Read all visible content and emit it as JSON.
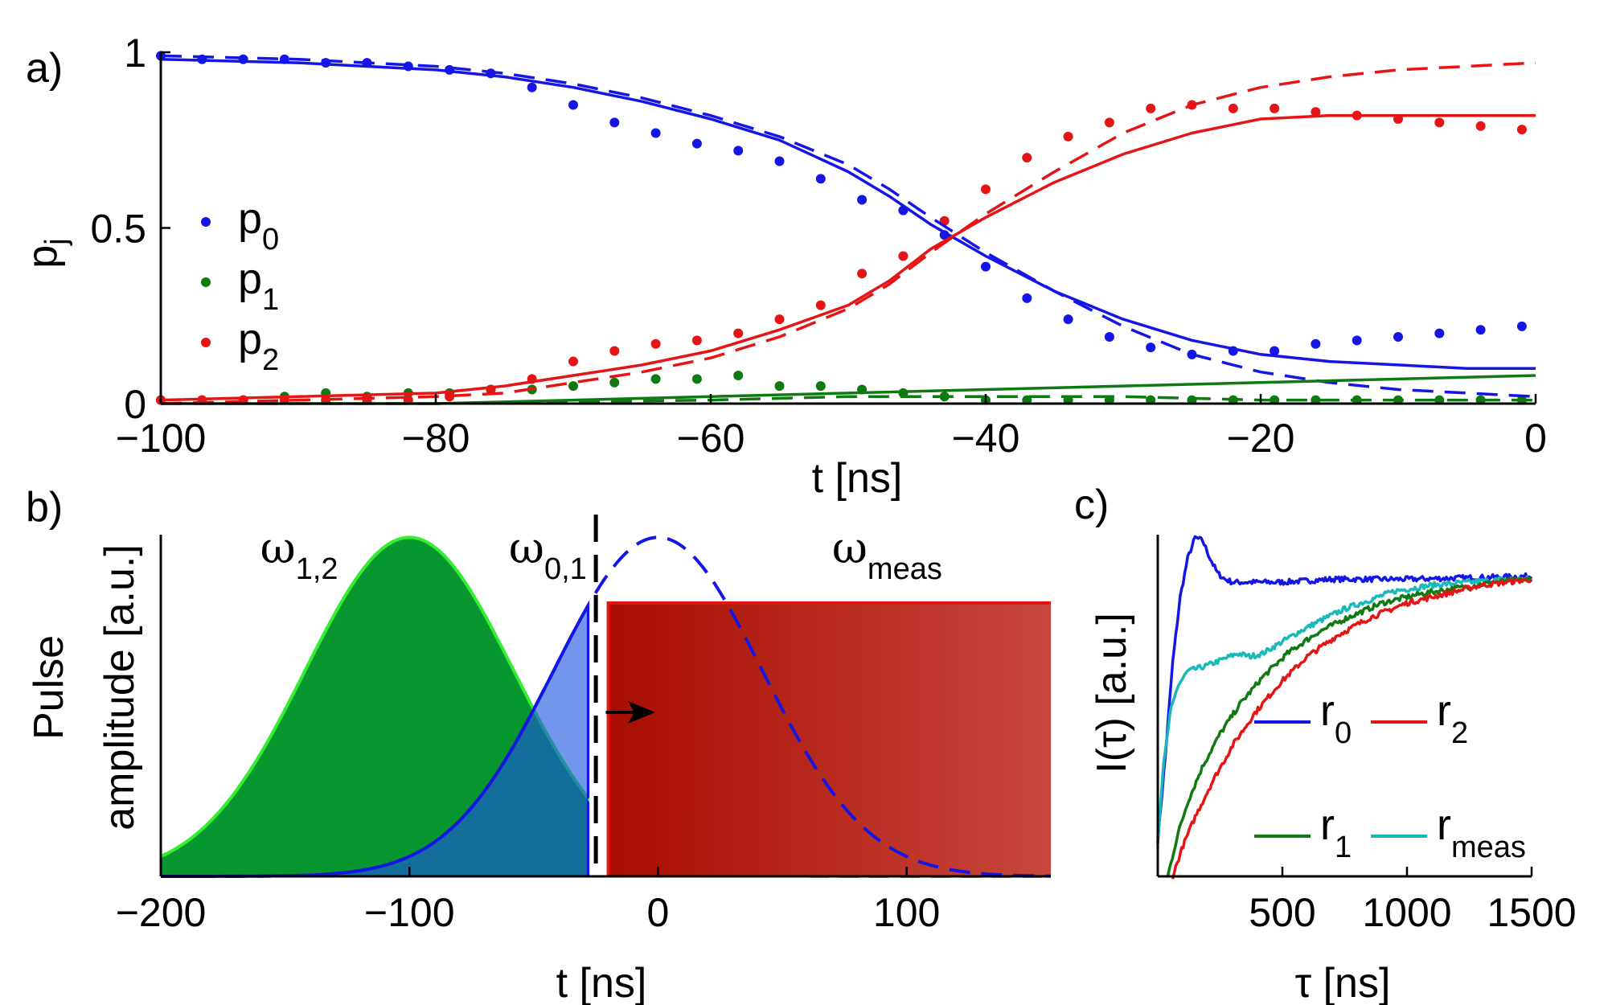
{
  "chart_data": [
    {
      "panel": "a)",
      "type": "line",
      "xlabel": "t [ns]",
      "ylabel": "p",
      "ylabel_sub": "j",
      "xlim": [
        -100,
        0
      ],
      "ylim": [
        0,
        1
      ],
      "xticks": [
        -100,
        -80,
        -60,
        -40,
        -20,
        0
      ],
      "xtick_labels": [
        "−100",
        "−80",
        "−60",
        "−40",
        "−20",
        "0"
      ],
      "yticks": [
        0,
        0.5,
        1
      ],
      "ytick_labels": [
        "0",
        "0.5",
        "1"
      ],
      "legend": [
        {
          "label": "p",
          "sub": "0",
          "color": "#1515e6"
        },
        {
          "label": "p",
          "sub": "1",
          "color": "#0f7a12"
        },
        {
          "label": "p",
          "sub": "2",
          "color": "#e61515"
        }
      ],
      "legend_position": "center-left",
      "series": [
        {
          "name": "p0 data",
          "style": "dots",
          "color": "#1515e6",
          "x": [
            -100,
            -97,
            -94,
            -91,
            -88,
            -85,
            -82,
            -79,
            -76,
            -73,
            -70,
            -67,
            -64,
            -61,
            -58,
            -55,
            -52,
            -49,
            -46,
            -43,
            -40,
            -37,
            -34,
            -31,
            -28,
            -25,
            -22,
            -19,
            -16,
            -13,
            -10,
            -7,
            -4,
            -1
          ],
          "y": [
            0.99,
            0.98,
            0.98,
            0.98,
            0.97,
            0.97,
            0.96,
            0.95,
            0.94,
            0.9,
            0.85,
            0.8,
            0.77,
            0.74,
            0.72,
            0.69,
            0.64,
            0.58,
            0.55,
            0.48,
            0.39,
            0.3,
            0.24,
            0.19,
            0.16,
            0.14,
            0.15,
            0.15,
            0.17,
            0.18,
            0.19,
            0.2,
            0.21,
            0.22
          ]
        },
        {
          "name": "p1 data",
          "style": "dots",
          "color": "#0f7a12",
          "x": [
            -100,
            -97,
            -94,
            -91,
            -88,
            -85,
            -82,
            -79,
            -76,
            -73,
            -70,
            -67,
            -64,
            -61,
            -58,
            -55,
            -52,
            -49,
            -46,
            -43,
            -40,
            -37,
            -34,
            -31,
            -28,
            -25,
            -22,
            -19,
            -16,
            -13,
            -10,
            -7,
            -4,
            -1
          ],
          "y": [
            0.01,
            0.01,
            0.01,
            0.02,
            0.03,
            0.02,
            0.03,
            0.03,
            0.04,
            0.04,
            0.05,
            0.06,
            0.07,
            0.07,
            0.08,
            0.05,
            0.05,
            0.04,
            0.03,
            0.02,
            0.01,
            0.01,
            0.01,
            0.01,
            0.01,
            0.01,
            0.01,
            0.01,
            0.01,
            0.01,
            0.01,
            0.01,
            0.01,
            0.01
          ]
        },
        {
          "name": "p2 data",
          "style": "dots",
          "color": "#e61515",
          "x": [
            -100,
            -97,
            -94,
            -91,
            -88,
            -85,
            -82,
            -79,
            -76,
            -73,
            -70,
            -67,
            -64,
            -61,
            -58,
            -55,
            -52,
            -49,
            -46,
            -43,
            -40,
            -37,
            -34,
            -31,
            -28,
            -25,
            -22,
            -19,
            -16,
            -13,
            -10,
            -7,
            -4,
            -1
          ],
          "y": [
            0.01,
            0.01,
            0.01,
            0.01,
            0.01,
            0.01,
            0.01,
            0.02,
            0.04,
            0.07,
            0.12,
            0.15,
            0.17,
            0.18,
            0.2,
            0.24,
            0.28,
            0.37,
            0.42,
            0.52,
            0.61,
            0.7,
            0.76,
            0.8,
            0.84,
            0.85,
            0.84,
            0.84,
            0.83,
            0.82,
            0.81,
            0.8,
            0.79,
            0.78
          ]
        },
        {
          "name": "p0 model (solid)",
          "style": "solid",
          "color": "#1515e6",
          "x": [
            -100,
            -90,
            -80,
            -75,
            -70,
            -65,
            -60,
            -55,
            -50,
            -47,
            -44,
            -40,
            -35,
            -30,
            -25,
            -20,
            -15,
            -10,
            -5,
            0
          ],
          "y": [
            0.98,
            0.97,
            0.95,
            0.93,
            0.9,
            0.86,
            0.81,
            0.75,
            0.66,
            0.59,
            0.51,
            0.42,
            0.32,
            0.24,
            0.18,
            0.14,
            0.12,
            0.11,
            0.1,
            0.1
          ]
        },
        {
          "name": "p0 model (dashed)",
          "style": "dashed",
          "color": "#1515e6",
          "x": [
            -100,
            -90,
            -80,
            -75,
            -70,
            -65,
            -60,
            -55,
            -50,
            -47,
            -44,
            -40,
            -35,
            -30,
            -25,
            -20,
            -15,
            -10,
            -5,
            0
          ],
          "y": [
            0.99,
            0.98,
            0.96,
            0.94,
            0.91,
            0.87,
            0.82,
            0.76,
            0.68,
            0.61,
            0.53,
            0.43,
            0.32,
            0.22,
            0.14,
            0.09,
            0.06,
            0.04,
            0.03,
            0.02
          ]
        },
        {
          "name": "p1 model (solid)",
          "style": "solid",
          "color": "#0f7a12",
          "x": [
            -100,
            -80,
            -60,
            -50,
            -40,
            -30,
            -20,
            -10,
            0
          ],
          "y": [
            0.0,
            0.0,
            0.02,
            0.03,
            0.04,
            0.05,
            0.06,
            0.07,
            0.08
          ]
        },
        {
          "name": "p1 model (dashed)",
          "style": "dashed",
          "color": "#0f7a12",
          "x": [
            -100,
            -80,
            -60,
            -50,
            -40,
            -30,
            -20,
            -10,
            0
          ],
          "y": [
            0.0,
            0.0,
            0.01,
            0.02,
            0.02,
            0.02,
            0.01,
            0.01,
            0.01
          ]
        },
        {
          "name": "p2 model (solid)",
          "style": "solid",
          "color": "#e61515",
          "x": [
            -100,
            -90,
            -80,
            -75,
            -70,
            -65,
            -60,
            -55,
            -50,
            -47,
            -44,
            -40,
            -35,
            -30,
            -25,
            -20,
            -15,
            -10,
            -5,
            0
          ],
          "y": [
            0.01,
            0.02,
            0.03,
            0.05,
            0.08,
            0.11,
            0.15,
            0.21,
            0.28,
            0.35,
            0.44,
            0.53,
            0.63,
            0.71,
            0.77,
            0.81,
            0.82,
            0.82,
            0.82,
            0.82
          ]
        },
        {
          "name": "p2 model (dashed)",
          "style": "dashed",
          "color": "#e61515",
          "x": [
            -100,
            -90,
            -80,
            -75,
            -70,
            -65,
            -60,
            -55,
            -50,
            -47,
            -44,
            -40,
            -35,
            -30,
            -25,
            -20,
            -15,
            -10,
            -5,
            0
          ],
          "y": [
            0.0,
            0.01,
            0.02,
            0.03,
            0.06,
            0.09,
            0.13,
            0.19,
            0.27,
            0.34,
            0.43,
            0.54,
            0.66,
            0.77,
            0.85,
            0.9,
            0.93,
            0.95,
            0.96,
            0.97
          ]
        }
      ]
    },
    {
      "panel": "b)",
      "type": "area",
      "xlabel": "t [ns]",
      "ylabel": "Pulse amplitude [a.u.]",
      "ylabel_lines": [
        "Pulse",
        "amplitude [a.u.]"
      ],
      "xlim": [
        -200,
        158
      ],
      "ylim": [
        0,
        1.25
      ],
      "xticks": [
        -200,
        -100,
        0,
        100
      ],
      "xtick_labels": [
        "−200",
        "−100",
        "0",
        "100"
      ],
      "annotations": [
        {
          "text": "ω",
          "sub": "1,2",
          "x": -160
        },
        {
          "text": "ω",
          "sub": "0,1",
          "x": -60
        },
        {
          "text": "ω",
          "sub": "meas",
          "x": 70
        }
      ],
      "pulse_12": {
        "center": -100,
        "sigma": 42,
        "amplitude": 1.24,
        "cut": -28,
        "color": "#08962e",
        "edge": "#33ee33"
      },
      "pulse_01": {
        "center": 0,
        "sigma": 42,
        "amplitude": 1.24,
        "cut": -28,
        "color": "#1a56e0",
        "edge": "#1515e6"
      },
      "meas_pulse": {
        "start": -20,
        "end": 158,
        "level": 1.0,
        "color_start": "#a80d00",
        "color_end": "#c8473d",
        "edge": "#e61515"
      },
      "dashed_marker_x": -25,
      "arrow": {
        "from": -21,
        "to": -5,
        "level": 0.6
      }
    },
    {
      "panel": "c)",
      "type": "line",
      "xlabel": "τ [ns]",
      "ylabel": "I(τ) [a.u.]",
      "xlim": [
        0,
        1500
      ],
      "ylim": [
        0,
        1.15
      ],
      "xticks": [
        500,
        1000,
        1500
      ],
      "xtick_labels": [
        "500",
        "1000",
        "1500"
      ],
      "legend": [
        {
          "label": "r",
          "sub": "0",
          "color": "#1515e6"
        },
        {
          "label": "r",
          "sub": "2",
          "color": "#e61515"
        },
        {
          "label": "r",
          "sub": "1",
          "color": "#0f7a12"
        },
        {
          "label": "r",
          "sub": "meas",
          "color": "#1ab8b8"
        }
      ],
      "legend_position": "lower-right",
      "series": [
        {
          "name": "r0",
          "color": "#1515e6",
          "x": [
            0,
            30,
            60,
            90,
            120,
            150,
            180,
            210,
            240,
            270,
            300,
            350,
            400,
            500,
            700,
            1000,
            1500
          ],
          "y": [
            0.12,
            0.4,
            0.72,
            0.94,
            1.07,
            1.14,
            1.13,
            1.07,
            1.02,
            1.0,
            0.99,
            0.99,
            0.99,
            0.99,
            1.0,
            1.0,
            1.01
          ]
        },
        {
          "name": "r_meas",
          "color": "#1ab8b8",
          "x": [
            0,
            20,
            50,
            80,
            120,
            160,
            200,
            260,
            320,
            370,
            420,
            480,
            560,
            650,
            750,
            850,
            950,
            1100,
            1250,
            1400,
            1500
          ],
          "y": [
            0.12,
            0.35,
            0.55,
            0.64,
            0.69,
            0.7,
            0.71,
            0.73,
            0.75,
            0.74,
            0.75,
            0.78,
            0.82,
            0.86,
            0.9,
            0.93,
            0.96,
            0.98,
            0.99,
            1.0,
            1.0
          ]
        },
        {
          "name": "r1",
          "color": "#0f7a12",
          "x": [
            40,
            80,
            120,
            180,
            250,
            330,
            420,
            520,
            640,
            760,
            900,
            1050,
            1200,
            1350,
            1500
          ],
          "y": [
            0.0,
            0.14,
            0.25,
            0.37,
            0.48,
            0.58,
            0.67,
            0.75,
            0.82,
            0.87,
            0.92,
            0.95,
            0.97,
            0.99,
            1.0
          ]
        },
        {
          "name": "r2",
          "color": "#e61515",
          "x": [
            60,
            100,
            150,
            220,
            300,
            390,
            490,
            600,
            720,
            850,
            1000,
            1150,
            1300,
            1500
          ],
          "y": [
            0.0,
            0.1,
            0.2,
            0.32,
            0.44,
            0.55,
            0.65,
            0.74,
            0.81,
            0.87,
            0.92,
            0.95,
            0.98,
            1.0
          ]
        }
      ]
    }
  ]
}
